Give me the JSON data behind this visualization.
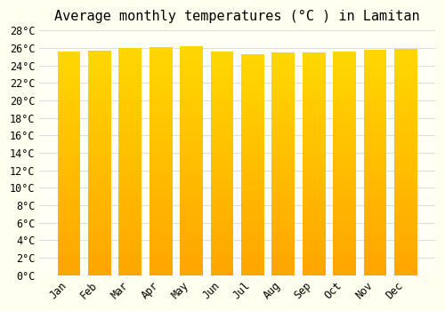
{
  "title": "Average monthly temperatures (°C ) in Lamitan",
  "months": [
    "Jan",
    "Feb",
    "Mar",
    "Apr",
    "May",
    "Jun",
    "Jul",
    "Aug",
    "Sep",
    "Oct",
    "Nov",
    "Dec"
  ],
  "values": [
    25.6,
    25.7,
    26.0,
    26.1,
    26.2,
    25.6,
    25.3,
    25.5,
    25.5,
    25.6,
    25.8,
    25.9
  ],
  "bar_color_bottom": "#FFA500",
  "bar_color_top": "#FFD700",
  "background_color": "#FFFFF0",
  "plot_bg_color": "#FFFFF5",
  "grid_color": "#DDDDDD",
  "ylim": [
    0,
    28
  ],
  "yticks": [
    0,
    2,
    4,
    6,
    8,
    10,
    12,
    14,
    16,
    18,
    20,
    22,
    24,
    26,
    28
  ],
  "title_fontsize": 11,
  "tick_fontsize": 8.5
}
